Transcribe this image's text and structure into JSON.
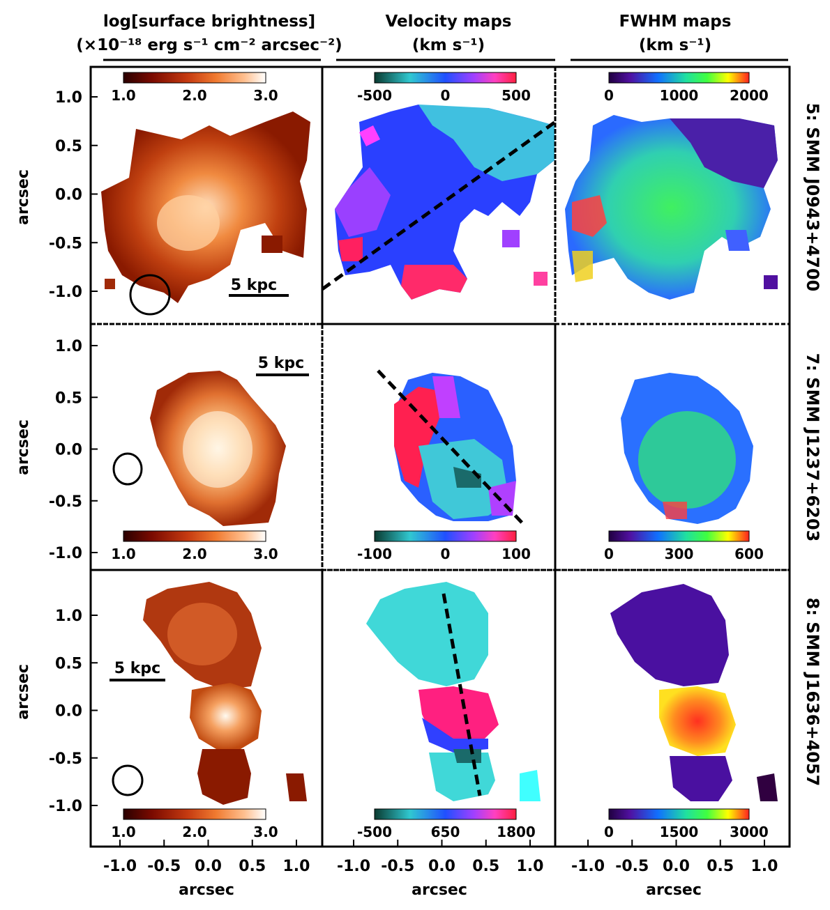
{
  "headers": [
    {
      "line1": "log[surface brightness]",
      "line2": "(×10⁻¹⁸ erg s⁻¹ cm⁻² arcsec⁻²)"
    },
    {
      "line1": "Velocity maps",
      "line2": "(km s⁻¹)"
    },
    {
      "line1": "FWHM maps",
      "line2": "(km s⁻¹)"
    }
  ],
  "rows": [
    {
      "label": "5: SMM J0943+4700",
      "scalebar": "5 kpc",
      "cbars": [
        {
          "ticks": [
            "1.0",
            "2.0",
            "3.0"
          ],
          "pos": "top"
        },
        {
          "ticks": [
            "-500",
            "0",
            "500"
          ],
          "pos": "top"
        },
        {
          "ticks": [
            "0",
            "1000",
            "2000"
          ],
          "pos": "top"
        }
      ]
    },
    {
      "label": "7: SMM J1237+6203",
      "scalebar": "5 kpc",
      "cbars": [
        {
          "ticks": [
            "1.0",
            "2.0",
            "3.0"
          ],
          "pos": "bottom"
        },
        {
          "ticks": [
            "-100",
            "0",
            "100"
          ],
          "pos": "bottom"
        },
        {
          "ticks": [
            "0",
            "300",
            "600"
          ],
          "pos": "bottom"
        }
      ]
    },
    {
      "label": "8: SMM J1636+4057",
      "scalebar": "5 kpc",
      "cbars": [
        {
          "ticks": [
            "1.0",
            "2.0",
            "3.0"
          ],
          "pos": "bottom"
        },
        {
          "ticks": [
            "-500",
            "650",
            "1800"
          ],
          "pos": "bottom"
        },
        {
          "ticks": [
            "0",
            "1500",
            "3000"
          ],
          "pos": "bottom"
        }
      ]
    }
  ],
  "axes": {
    "ylabel": "arcsec",
    "xlabel": "arcsec",
    "yticks_row1": [
      "1.0",
      "0.5",
      "0.0",
      "-0.5",
      "-1.0"
    ],
    "yticks_row2": [
      "1.0",
      "0.5",
      "0.0",
      "-0.5",
      "-1.0"
    ],
    "yticks_row3": [
      "1.0",
      "0.5",
      "0.0",
      "-0.5",
      "-1.0"
    ],
    "xticks": [
      "-1.0",
      "-0.5",
      "0.0",
      "0.5",
      "1.0"
    ]
  },
  "colors": {
    "surface": [
      "#2a0000",
      "#7a0a00",
      "#c53a10",
      "#f07a30",
      "#ffc090",
      "#ffffff"
    ],
    "velocity": [
      "#0a3a30",
      "#30c8d0",
      "#2050ff",
      "#a040ff",
      "#ff40c0",
      "#ff2040"
    ],
    "fwhm": [
      "#200040",
      "#5010a0",
      "#1070ff",
      "#20e0a0",
      "#40ff40",
      "#ffff00",
      "#ff2020"
    ]
  }
}
